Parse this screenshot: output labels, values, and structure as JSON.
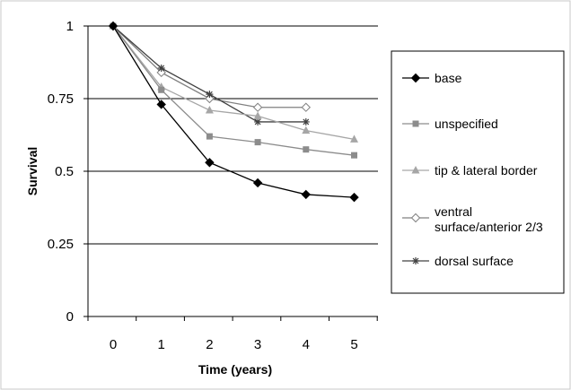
{
  "chart_data": {
    "type": "line",
    "title": "",
    "xlabel": "Time (years)",
    "ylabel": "Survival",
    "x": [
      0,
      1,
      2,
      3,
      4,
      5
    ],
    "xlim": [
      0,
      5
    ],
    "ylim": [
      0,
      1
    ],
    "yticks": [
      "0",
      "0.25",
      "0.5",
      "0.75",
      "1"
    ],
    "xticks": [
      "0",
      "1",
      "2",
      "3",
      "4",
      "5"
    ],
    "grid": "horizontal",
    "legend_position": "right",
    "series": [
      {
        "name": "base",
        "color": "#000000",
        "marker": "diamond-filled",
        "values": [
          1.0,
          0.73,
          0.53,
          0.46,
          0.42,
          0.41
        ]
      },
      {
        "name": "unspecified",
        "color": "#8c8c8c",
        "marker": "square-filled",
        "values": [
          1.0,
          0.78,
          0.62,
          0.6,
          0.575,
          0.555
        ]
      },
      {
        "name": "tip & lateral border",
        "color": "#a6a6a6",
        "marker": "triangle-filled",
        "values": [
          1.0,
          0.79,
          0.71,
          0.69,
          0.64,
          0.61
        ]
      },
      {
        "name": "ventral surface/anterior 2/3",
        "legend_lines": [
          "ventral",
          "surface/anterior 2/3"
        ],
        "color": "#808080",
        "marker": "diamond-open",
        "values": [
          1.0,
          0.84,
          0.75,
          0.72,
          0.72,
          null
        ]
      },
      {
        "name": "dorsal surface",
        "color": "#404040",
        "marker": "star",
        "values": [
          1.0,
          0.855,
          0.765,
          0.67,
          0.67,
          null
        ]
      }
    ]
  }
}
